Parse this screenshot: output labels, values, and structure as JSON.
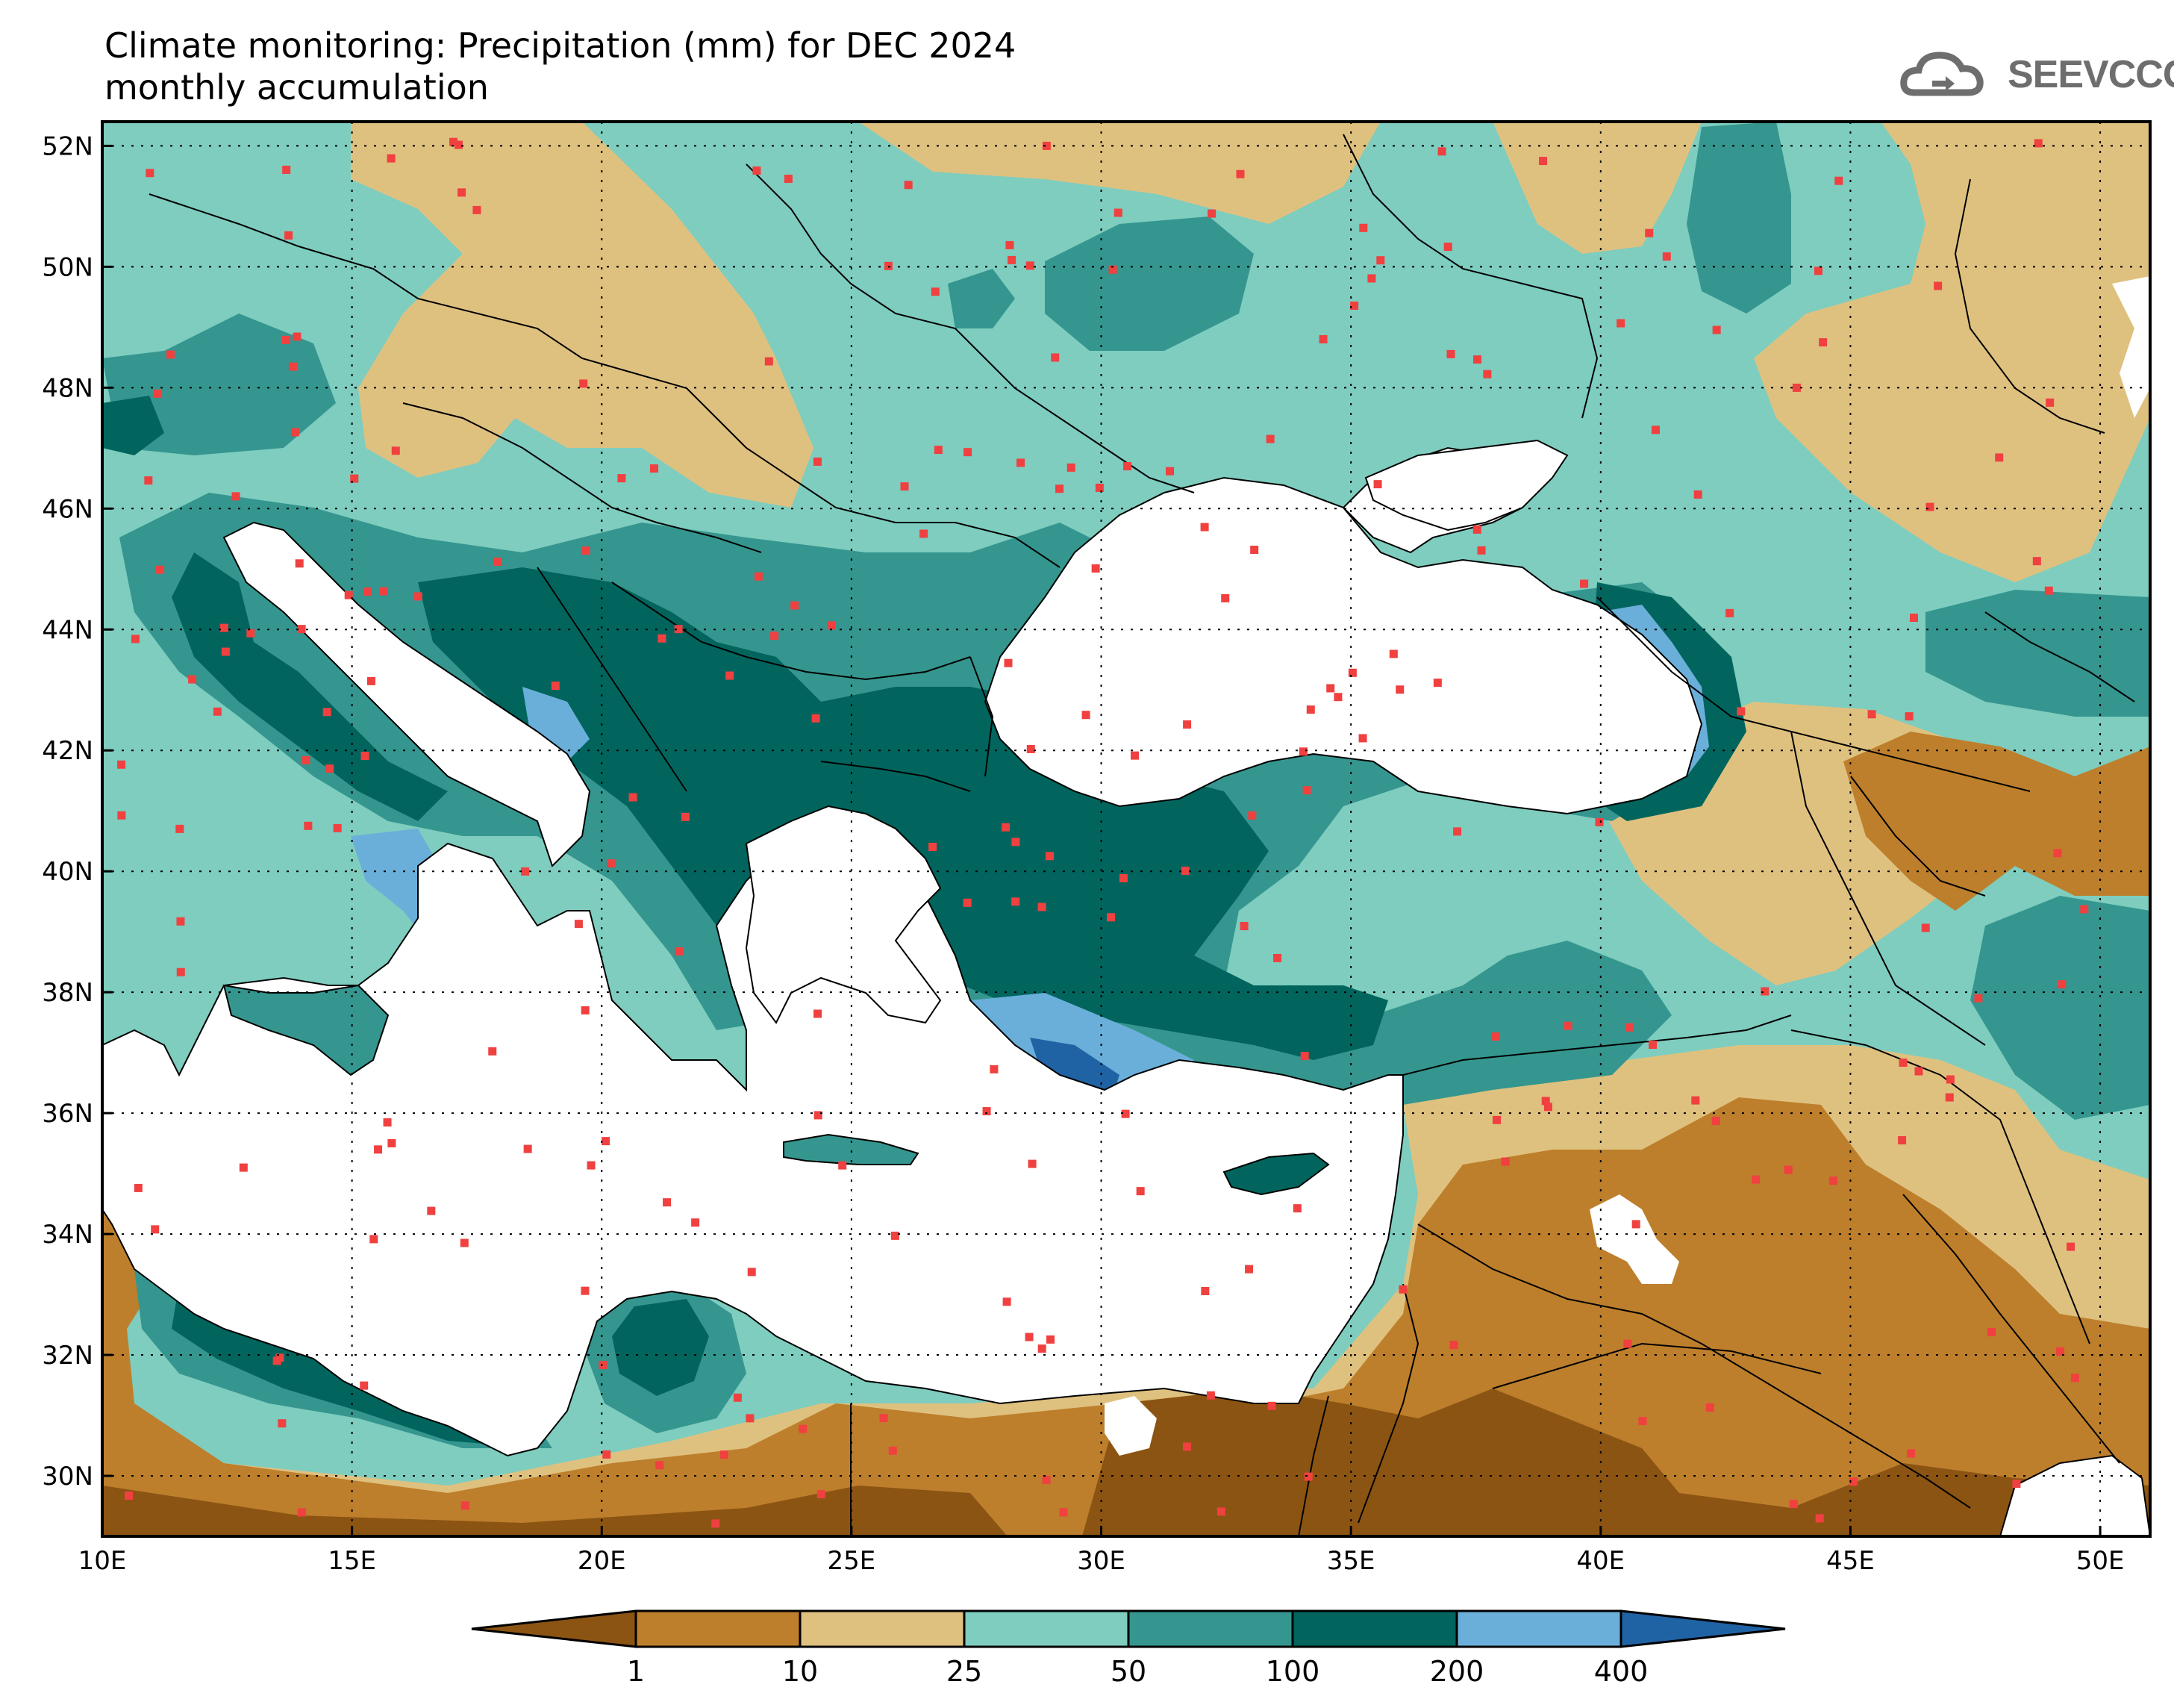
{
  "title": {
    "line1": "Climate monitoring: Precipitation (mm) for DEC 2024",
    "line2": "monthly accumulation"
  },
  "logo": {
    "text": "SEEVCCC",
    "icon": "cloud-logo-icon"
  },
  "axes": {
    "lat_labels": [
      "52N",
      "50N",
      "48N",
      "46N",
      "44N",
      "42N",
      "40N",
      "38N",
      "36N",
      "34N",
      "32N",
      "30N"
    ],
    "lon_labels": [
      "10E",
      "15E",
      "20E",
      "25E",
      "30E",
      "35E",
      "40E",
      "45E",
      "50E"
    ],
    "lat_values": [
      52,
      50,
      48,
      46,
      44,
      42,
      40,
      38,
      36,
      34,
      32,
      30
    ],
    "lon_values": [
      10,
      15,
      20,
      25,
      30,
      35,
      40,
      45,
      50
    ],
    "lat_range": [
      29,
      52.4
    ],
    "lon_range": [
      10,
      51
    ]
  },
  "colorbar": {
    "labels": [
      "1",
      "10",
      "25",
      "50",
      "100",
      "200",
      "400"
    ],
    "colors": [
      "#8b5413",
      "#bd7f2c",
      "#dfc17f",
      "#7ecdbf",
      "#35968f",
      "#01655e",
      "#6aafd9",
      "#2063a5"
    ]
  },
  "colors": {
    "station_marker": "#f04040",
    "land_boundary": "#000000",
    "sea": "#ffffff"
  }
}
